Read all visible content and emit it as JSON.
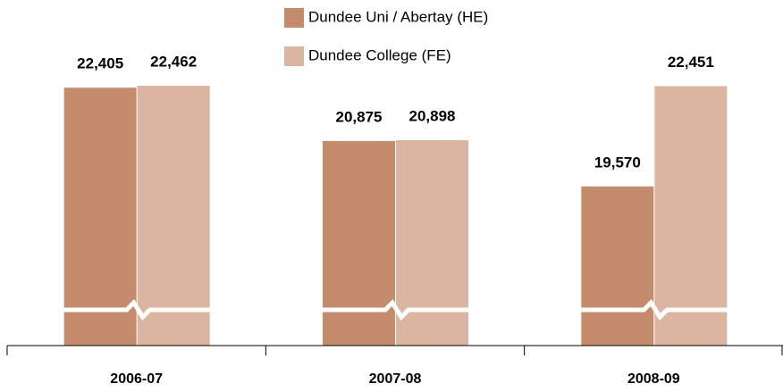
{
  "chart_data": {
    "type": "bar",
    "categories": [
      "2006-07",
      "2007-08",
      "2008-09"
    ],
    "series": [
      {
        "name": "Dundee Uni / Abertay (HE)",
        "color": "#c48c6c",
        "values": [
          22405,
          20875,
          19570
        ],
        "value_labels": [
          "22,405",
          "20,875",
          "19,570"
        ]
      },
      {
        "name": "Dundee College (FE)",
        "color": "#dab6a0",
        "values": [
          22462,
          20898,
          22451
        ],
        "value_labels": [
          "22,462",
          "20,898",
          "22,451"
        ]
      }
    ],
    "ylim": [
      15000,
      23000
    ],
    "axis_break": true
  }
}
